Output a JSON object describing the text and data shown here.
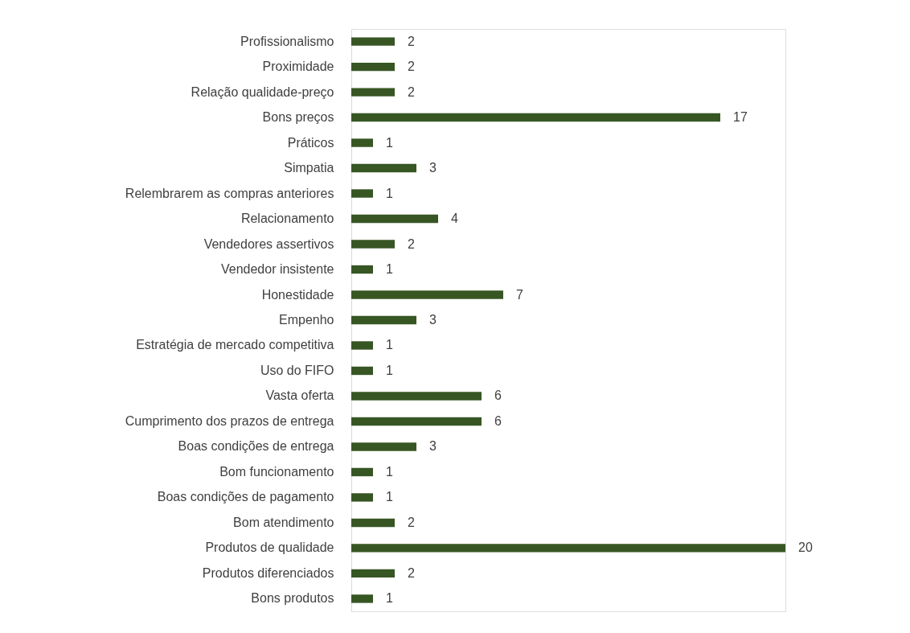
{
  "chart_data": {
    "type": "bar",
    "orientation": "horizontal",
    "data_labels": true,
    "grid": false,
    "tick_labels": "y",
    "color": "#375623",
    "categories": [
      "Profissionalismo",
      "Proximidade",
      "Relação qualidade-preço",
      "Bons preços",
      "Práticos",
      "Simpatia",
      "Relembrarem as compras anteriores",
      "Relacionamento",
      "Vendedores assertivos",
      "Vendedor insistente",
      "Honestidade",
      "Empenho",
      "Estratégia de mercado competitiva",
      "Uso do FIFO",
      "Vasta oferta",
      "Cumprimento dos prazos de entrega",
      "Boas condições de entrega",
      "Bom funcionamento",
      "Boas condições de pagamento",
      "Bom atendimento",
      "Produtos de qualidade",
      "Produtos diferenciados",
      "Bons produtos"
    ],
    "values": [
      2,
      2,
      2,
      17,
      1,
      3,
      1,
      4,
      2,
      1,
      7,
      3,
      1,
      1,
      6,
      6,
      3,
      1,
      1,
      2,
      20,
      2,
      1
    ]
  }
}
